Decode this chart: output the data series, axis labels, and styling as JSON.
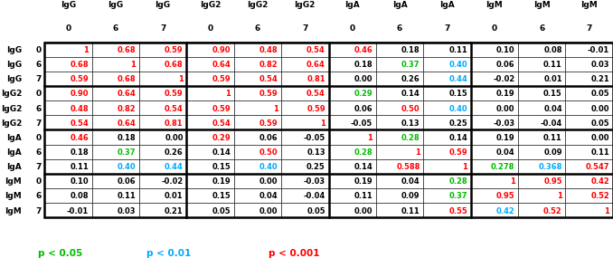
{
  "col_headers_top": [
    "IgG",
    "IgG",
    "IgG",
    "IgG2",
    "IgG2",
    "IgG2",
    "IgA",
    "IgA",
    "IgA",
    "IgM",
    "IgM",
    "IgM"
  ],
  "col_headers_bot": [
    "0",
    "6",
    "7",
    "0",
    "6",
    "7",
    "0",
    "6",
    "7",
    "0",
    "6",
    "7"
  ],
  "row_headers_left": [
    "IgG",
    "IgG",
    "IgG",
    "IgG2",
    "IgG2",
    "IgG2",
    "IgA",
    "IgA",
    "IgA",
    "IgM",
    "IgM",
    "IgM"
  ],
  "row_headers_num": [
    "0",
    "6",
    "7",
    "0",
    "6",
    "7",
    "0",
    "6",
    "7",
    "0",
    "6",
    "7"
  ],
  "values": [
    [
      "1",
      "0.68",
      "0.59",
      "0.90",
      "0.48",
      "0.54",
      "0.46",
      "0.18",
      "0.11",
      "0.10",
      "0.08",
      "-0.01"
    ],
    [
      "0.68",
      "1",
      "0.68",
      "0.64",
      "0.82",
      "0.64",
      "0.18",
      "0.37",
      "0.40",
      "0.06",
      "0.11",
      "0.03"
    ],
    [
      "0.59",
      "0.68",
      "1",
      "0.59",
      "0.54",
      "0.81",
      "0.00",
      "0.26",
      "0.44",
      "-0.02",
      "0.01",
      "0.21"
    ],
    [
      "0.90",
      "0.64",
      "0.59",
      "1",
      "0.59",
      "0.54",
      "0.29",
      "0.14",
      "0.15",
      "0.19",
      "0.15",
      "0.05"
    ],
    [
      "0.48",
      "0.82",
      "0.54",
      "0.59",
      "1",
      "0.59",
      "0.06",
      "0.50",
      "0.40",
      "0.00",
      "0.04",
      "0.00"
    ],
    [
      "0.54",
      "0.64",
      "0.81",
      "0.54",
      "0.59",
      "1",
      "-0.05",
      "0.13",
      "0.25",
      "-0.03",
      "-0.04",
      "0.05"
    ],
    [
      "0.46",
      "0.18",
      "0.00",
      "0.29",
      "0.06",
      "-0.05",
      "1",
      "0.28",
      "0.14",
      "0.19",
      "0.11",
      "0.00"
    ],
    [
      "0.18",
      "0.37",
      "0.26",
      "0.14",
      "0.50",
      "0.13",
      "0.28",
      "1",
      "0.59",
      "0.04",
      "0.09",
      "0.11"
    ],
    [
      "0.11",
      "0.40",
      "0.44",
      "0.15",
      "0.40",
      "0.25",
      "0.14",
      "0.588",
      "1",
      "0.278",
      "0.368",
      "0.547"
    ],
    [
      "0.10",
      "0.06",
      "-0.02",
      "0.19",
      "0.00",
      "-0.03",
      "0.19",
      "0.04",
      "0.28",
      "1",
      "0.95",
      "0.42"
    ],
    [
      "0.08",
      "0.11",
      "0.01",
      "0.15",
      "0.04",
      "-0.04",
      "0.11",
      "0.09",
      "0.37",
      "0.95",
      "1",
      "0.52"
    ],
    [
      "-0.01",
      "0.03",
      "0.21",
      "0.05",
      "0.00",
      "0.05",
      "0.00",
      "0.11",
      "0.55",
      "0.42",
      "0.52",
      "1"
    ]
  ],
  "colors": [
    [
      "red",
      "red",
      "red",
      "red",
      "red",
      "red",
      "red",
      "black",
      "black",
      "black",
      "black",
      "black"
    ],
    [
      "red",
      "red",
      "red",
      "red",
      "red",
      "red",
      "black",
      "green",
      "cyan",
      "black",
      "black",
      "black"
    ],
    [
      "red",
      "red",
      "red",
      "red",
      "red",
      "red",
      "black",
      "black",
      "cyan",
      "black",
      "black",
      "black"
    ],
    [
      "red",
      "red",
      "red",
      "red",
      "red",
      "red",
      "green",
      "black",
      "black",
      "black",
      "black",
      "black"
    ],
    [
      "red",
      "red",
      "red",
      "red",
      "red",
      "red",
      "black",
      "red",
      "cyan",
      "black",
      "black",
      "black"
    ],
    [
      "red",
      "red",
      "red",
      "red",
      "red",
      "red",
      "black",
      "black",
      "black",
      "black",
      "black",
      "black"
    ],
    [
      "red",
      "black",
      "black",
      "red",
      "black",
      "black",
      "red",
      "green",
      "black",
      "black",
      "black",
      "black"
    ],
    [
      "black",
      "green",
      "black",
      "black",
      "red",
      "black",
      "green",
      "red",
      "red",
      "black",
      "black",
      "black"
    ],
    [
      "black",
      "cyan",
      "cyan",
      "black",
      "cyan",
      "black",
      "black",
      "red",
      "red",
      "green",
      "cyan",
      "red"
    ],
    [
      "black",
      "black",
      "black",
      "black",
      "black",
      "black",
      "black",
      "black",
      "green",
      "red",
      "red",
      "red"
    ],
    [
      "black",
      "black",
      "black",
      "black",
      "black",
      "black",
      "black",
      "black",
      "green",
      "red",
      "red",
      "red"
    ],
    [
      "black",
      "black",
      "black",
      "black",
      "black",
      "black",
      "black",
      "black",
      "red",
      "cyan",
      "red",
      "red"
    ]
  ],
  "group_separators_col": [
    2,
    5,
    8
  ],
  "group_separators_row": [
    2,
    5,
    8
  ],
  "legend": [
    {
      "text": "p < 0.05",
      "color": "green"
    },
    {
      "text": "p < 0.01",
      "color": "cyan"
    },
    {
      "text": "p < 0.001",
      "color": "red"
    }
  ],
  "bg_color": "white",
  "color_map": {
    "red": "#FF0000",
    "green": "#00BB00",
    "cyan": "#00AAFF",
    "black": "#000000"
  }
}
